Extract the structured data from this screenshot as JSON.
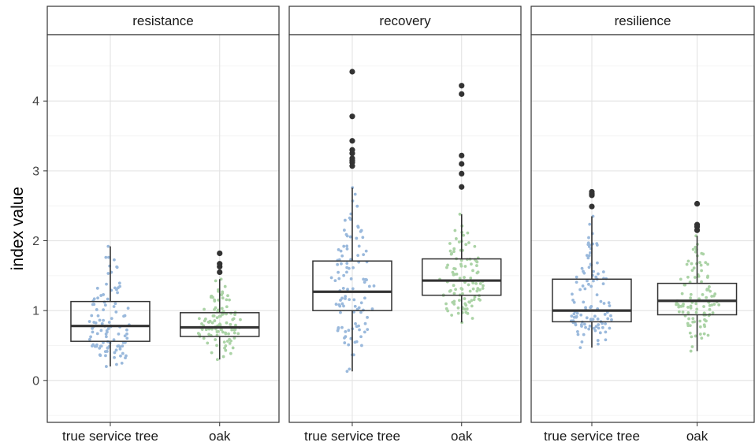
{
  "chart_data": {
    "type": "box",
    "ylabel": "index value",
    "ylim": [
      -0.6,
      4.95
    ],
    "y_ticks": [
      0,
      1,
      2,
      3,
      4
    ],
    "y_tick_labels": [
      "0",
      "1",
      "2",
      "3",
      "4"
    ],
    "grid": true,
    "categories": [
      "true service tree",
      "oak"
    ],
    "series_colors": {
      "true service tree": "#9ab9dc",
      "oak": "#abd3a6"
    },
    "panels": [
      {
        "facet": "resistance",
        "boxes": [
          {
            "category": "true service tree",
            "whisker_low": 0.2,
            "q1": 0.56,
            "median": 0.78,
            "q3": 1.13,
            "whisker_high": 1.92,
            "outliers": []
          },
          {
            "category": "oak",
            "whisker_low": 0.3,
            "q1": 0.63,
            "median": 0.76,
            "q3": 0.97,
            "whisker_high": 1.45,
            "outliers": [
              1.55,
              1.63,
              1.67,
              1.82
            ]
          }
        ]
      },
      {
        "facet": "recovery",
        "boxes": [
          {
            "category": "true service tree",
            "whisker_low": 0.13,
            "q1": 1.0,
            "median": 1.27,
            "q3": 1.71,
            "whisker_high": 2.76,
            "outliers": [
              3.07,
              3.12,
              3.15,
              3.18,
              3.25,
              3.3,
              3.43,
              3.78,
              4.42
            ]
          },
          {
            "category": "oak",
            "whisker_low": 0.83,
            "q1": 1.22,
            "median": 1.43,
            "q3": 1.74,
            "whisker_high": 2.38,
            "outliers": [
              2.77,
              2.96,
              3.1,
              3.22,
              4.1,
              4.22
            ]
          }
        ]
      },
      {
        "facet": "resilience",
        "boxes": [
          {
            "category": "true service tree",
            "whisker_low": 0.47,
            "q1": 0.84,
            "median": 1.0,
            "q3": 1.45,
            "whisker_high": 2.35,
            "outliers": [
              2.49,
              2.65,
              2.67,
              2.7
            ]
          },
          {
            "category": "oak",
            "whisker_low": 0.42,
            "q1": 0.94,
            "median": 1.14,
            "q3": 1.39,
            "whisker_high": 2.07,
            "outliers": [
              2.15,
              2.2,
              2.23,
              2.53
            ]
          }
        ]
      }
    ]
  }
}
